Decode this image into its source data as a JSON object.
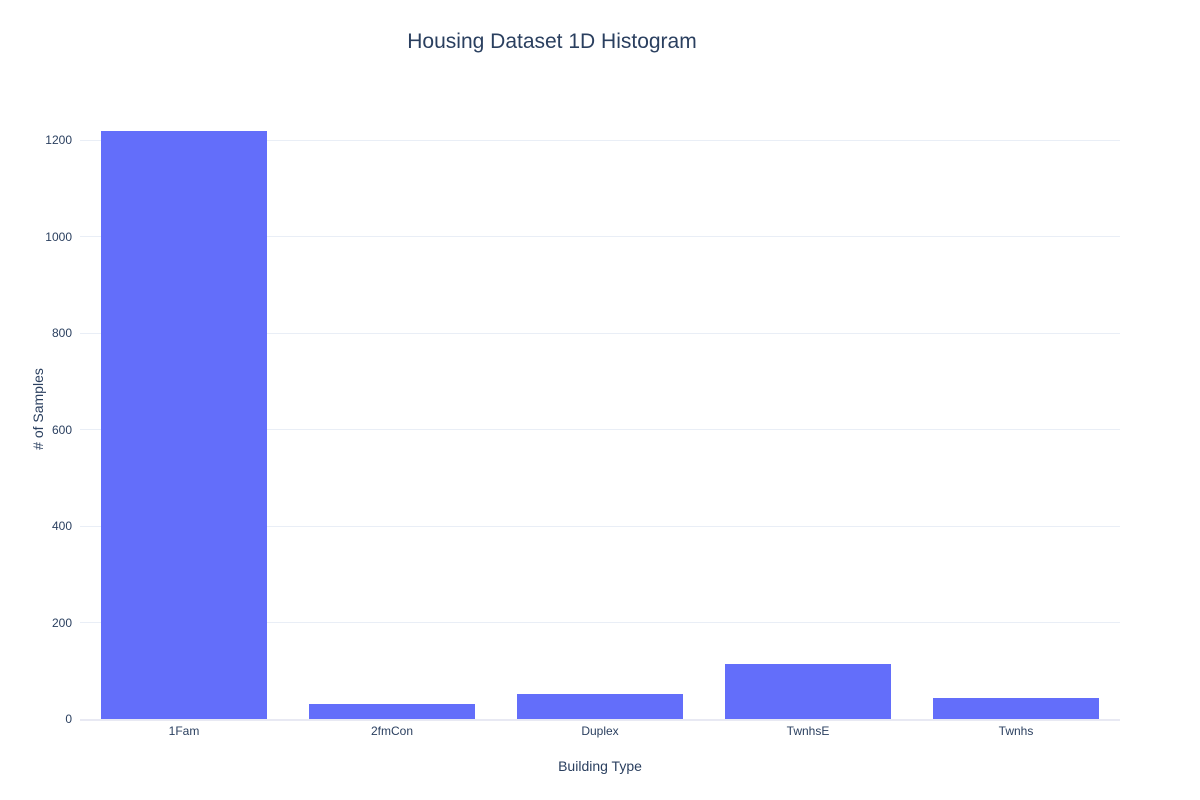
{
  "page": {
    "background_color": "#FFFFFF"
  },
  "chart_data": {
    "type": "bar",
    "title": "Housing Dataset 1D Histogram",
    "xlabel": "Building Type",
    "ylabel": "# of Samples",
    "categories": [
      "1Fam",
      "2fmCon",
      "Duplex",
      "TwnhsE",
      "Twnhs"
    ],
    "values": [
      1220,
      31,
      52,
      114,
      43
    ],
    "yticks": [
      0,
      200,
      400,
      600,
      800,
      1000,
      1200
    ],
    "ylim": [
      0,
      1284
    ],
    "bar_color": "#636EFA",
    "text_color": "#2A3F5F",
    "gridline_color": "#E9EEF6",
    "zeroline_color": "#E8E9F3",
    "grid": true,
    "legend_position": "none",
    "bar_fraction_of_slot": 0.8
  }
}
